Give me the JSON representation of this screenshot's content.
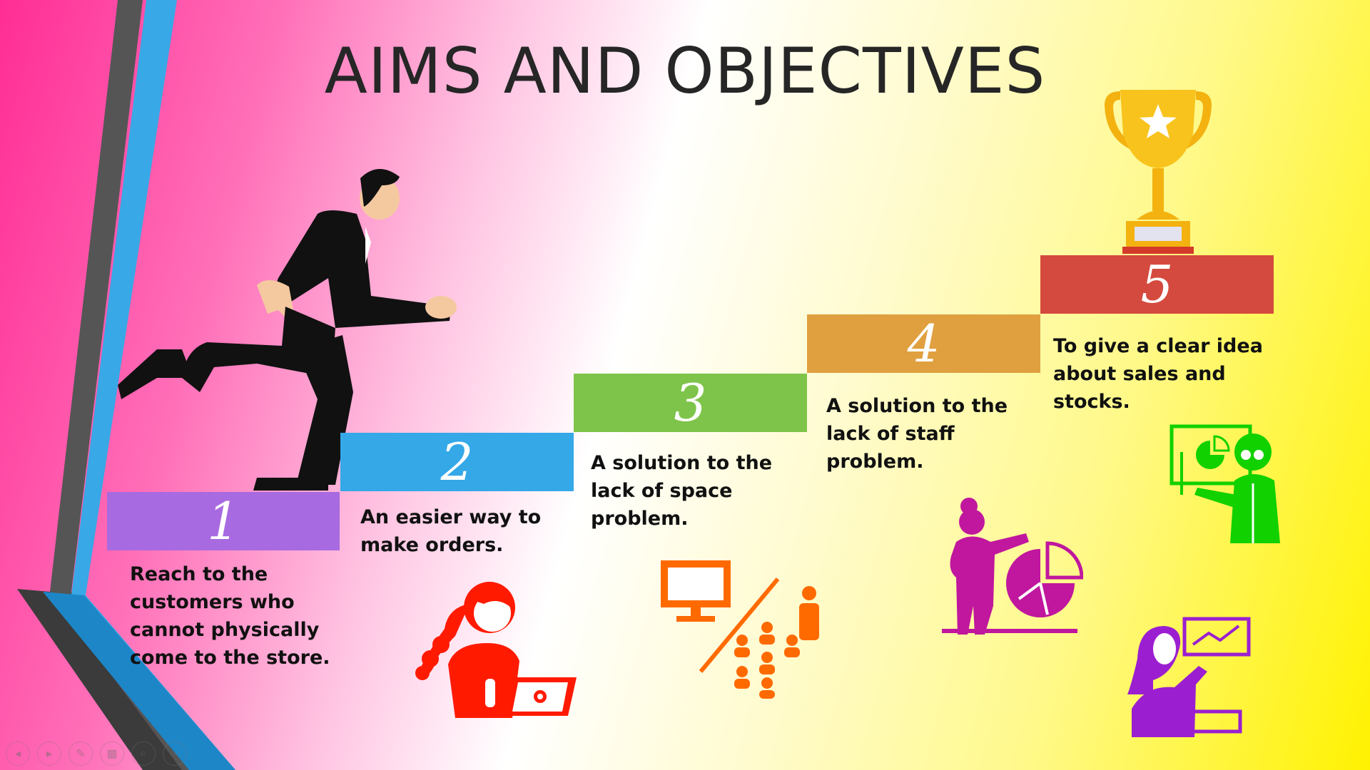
{
  "slide": {
    "title": "AIMS AND OBJECTIVES",
    "steps": [
      {
        "number": "1",
        "text": "Reach to the customers who cannot physically come to the store.",
        "color": "#a86ae0"
      },
      {
        "number": "2",
        "text": "An easier way to make orders.",
        "color": "#35a8e8"
      },
      {
        "number": "3",
        "text": "A solution to the lack of space problem.",
        "color": "#7ec44a"
      },
      {
        "number": "4",
        "text": "A solution to the lack of staff problem.",
        "color": "#e0a040"
      },
      {
        "number": "5",
        "text": "To give a clear idea about sales and stocks.",
        "color": "#d54a3e"
      }
    ]
  },
  "icons": {
    "runner": "businessman-running-icon",
    "trophy": "trophy-icon",
    "laptop_woman": "woman-laptop-icon",
    "monitor_people": "monitor-people-icon",
    "pie_presenter": "pie-chart-presenter-icon",
    "teacher": "teacher-board-icon",
    "hijab_presenter": "presenter-chart-icon"
  },
  "toolbar": {
    "buttons": [
      "previous",
      "next",
      "pen",
      "slides",
      "zoom",
      "more"
    ]
  }
}
